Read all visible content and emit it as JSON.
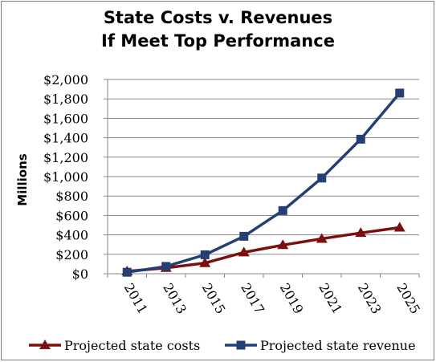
{
  "chart_data": {
    "type": "line",
    "title_line1": "State Costs v. Revenues",
    "title_line2": "If Meet Top Performance",
    "ylabel": "Millions",
    "xlabel": "",
    "x": [
      "2011",
      "2013",
      "2015",
      "2017",
      "2019",
      "2021",
      "2023",
      "2025"
    ],
    "yticks": [
      "$0",
      "$200",
      "$400",
      "$600",
      "$800",
      "$1,000",
      "$1,200",
      "$1,400",
      "$1,600",
      "$1,800",
      "$2,000"
    ],
    "ylim": [
      0,
      2000
    ],
    "grid": "horizontal",
    "legend_position": "bottom",
    "series": [
      {
        "name": "Projected state costs",
        "color": "#7b0f0f",
        "marker": "triangle",
        "values": [
          25,
          60,
          110,
          220,
          295,
          360,
          420,
          475
        ]
      },
      {
        "name": "Projected state revenue",
        "color": "#243f73",
        "marker": "square",
        "values": [
          15,
          75,
          195,
          385,
          650,
          985,
          1385,
          1860
        ]
      }
    ]
  }
}
